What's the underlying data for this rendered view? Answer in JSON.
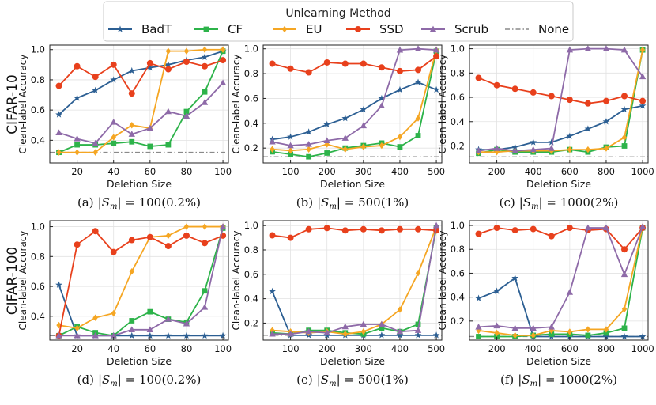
{
  "legend": {
    "title": "Unlearning Method",
    "items": [
      {
        "name": "BadT",
        "color": "#2c5f93",
        "marker": "star",
        "dash": ""
      },
      {
        "name": "CF",
        "color": "#2db34a",
        "marker": "square",
        "dash": ""
      },
      {
        "name": "EU",
        "color": "#f5a623",
        "marker": "diamond",
        "dash": ""
      },
      {
        "name": "SSD",
        "color": "#e8401c",
        "marker": "circle",
        "dash": ""
      },
      {
        "name": "Scrub",
        "color": "#8e6aa8",
        "marker": "triangle",
        "dash": ""
      },
      {
        "name": "None",
        "color": "#8a8a8a",
        "marker": "none",
        "dash": "6,3,1.5,3"
      }
    ]
  },
  "row_labels": [
    "CIFAR-10",
    "CIFAR-100"
  ],
  "ylabel": "Clean-label Accuracy",
  "xlabel": "Deletion Size",
  "captions": [
    {
      "letter": "(a)",
      "sm": "|S",
      "sub": "m",
      "expr": "| = 100(0.2%)"
    },
    {
      "letter": "(b)",
      "sm": "|S",
      "sub": "m",
      "expr": "| = 500(1%)"
    },
    {
      "letter": "(c)",
      "sm": "|S",
      "sub": "m",
      "expr": "| = 1000(2%)"
    },
    {
      "letter": "(d)",
      "sm": "|S",
      "sub": "m",
      "expr": "| = 100(0.2%)"
    },
    {
      "letter": "(e)",
      "sm": "|S",
      "sub": "m",
      "expr": "| = 500(1%)"
    },
    {
      "letter": "(f)",
      "sm": "|S",
      "sub": "m",
      "expr": "| = 1000(2%)"
    }
  ],
  "chart_data": [
    {
      "type": "line",
      "x": [
        10,
        20,
        30,
        40,
        50,
        60,
        70,
        80,
        90,
        100
      ],
      "xlim": [
        5,
        103
      ],
      "ylim": [
        0.25,
        1.03
      ],
      "xticks": [
        20,
        40,
        60,
        80,
        100
      ],
      "yticks": [
        0.2,
        0.4,
        0.6,
        0.8,
        1.0
      ],
      "grid": true,
      "baseline": 0.32,
      "series": [
        {
          "name": "BadT",
          "values": [
            0.57,
            0.68,
            0.73,
            0.8,
            0.86,
            0.88,
            0.9,
            0.93,
            0.95,
            0.99
          ]
        },
        {
          "name": "CF",
          "values": [
            0.32,
            0.37,
            0.37,
            0.38,
            0.39,
            0.36,
            0.37,
            0.59,
            0.72,
            0.99
          ]
        },
        {
          "name": "EU",
          "values": [
            0.32,
            0.32,
            0.32,
            0.42,
            0.5,
            0.48,
            0.99,
            0.99,
            1.0,
            1.0
          ]
        },
        {
          "name": "SSD",
          "values": [
            0.76,
            0.89,
            0.82,
            0.9,
            0.71,
            0.91,
            0.87,
            0.92,
            0.89,
            0.93
          ]
        },
        {
          "name": "Scrub",
          "values": [
            0.45,
            0.41,
            0.38,
            0.52,
            0.44,
            0.48,
            0.59,
            0.56,
            0.65,
            0.78
          ]
        }
      ]
    },
    {
      "type": "line",
      "x": [
        50,
        100,
        150,
        200,
        250,
        300,
        350,
        400,
        450,
        500
      ],
      "xlim": [
        25,
        515
      ],
      "ylim": [
        0.08,
        1.03
      ],
      "xticks": [
        100,
        200,
        300,
        400,
        500
      ],
      "yticks": [
        0.2,
        0.4,
        0.6,
        0.8,
        1.0
      ],
      "grid": true,
      "baseline": 0.13,
      "series": [
        {
          "name": "BadT",
          "values": [
            0.27,
            0.29,
            0.33,
            0.39,
            0.44,
            0.51,
            0.6,
            0.67,
            0.73,
            0.67
          ]
        },
        {
          "name": "CF",
          "values": [
            0.17,
            0.15,
            0.13,
            0.16,
            0.2,
            0.22,
            0.24,
            0.21,
            0.3,
            0.98
          ]
        },
        {
          "name": "EU",
          "values": [
            0.19,
            0.18,
            0.19,
            0.23,
            0.19,
            0.21,
            0.22,
            0.29,
            0.44,
            0.99
          ]
        },
        {
          "name": "SSD",
          "values": [
            0.88,
            0.84,
            0.81,
            0.89,
            0.88,
            0.88,
            0.85,
            0.82,
            0.83,
            0.94
          ]
        },
        {
          "name": "Scrub",
          "values": [
            0.25,
            0.22,
            0.23,
            0.26,
            0.28,
            0.38,
            0.54,
            0.99,
            1.0,
            0.99
          ]
        }
      ]
    },
    {
      "type": "line",
      "x": [
        100,
        200,
        300,
        400,
        500,
        600,
        700,
        800,
        900,
        1000
      ],
      "xlim": [
        50,
        1030
      ],
      "ylim": [
        0.06,
        1.03
      ],
      "xticks": [
        200,
        400,
        600,
        800,
        1000
      ],
      "yticks": [
        0.2,
        0.4,
        0.6,
        0.8,
        1.0
      ],
      "grid": true,
      "baseline": 0.11,
      "series": [
        {
          "name": "BadT",
          "values": [
            0.17,
            0.17,
            0.19,
            0.23,
            0.23,
            0.28,
            0.34,
            0.4,
            0.5,
            0.53
          ]
        },
        {
          "name": "CF",
          "values": [
            0.14,
            0.17,
            0.15,
            0.15,
            0.15,
            0.17,
            0.15,
            0.19,
            0.2,
            0.99
          ]
        },
        {
          "name": "EU",
          "values": [
            0.15,
            0.15,
            0.16,
            0.16,
            0.16,
            0.17,
            0.17,
            0.18,
            0.27,
            0.99
          ]
        },
        {
          "name": "SSD",
          "values": [
            0.76,
            0.7,
            0.67,
            0.64,
            0.61,
            0.58,
            0.55,
            0.57,
            0.61,
            0.57
          ]
        },
        {
          "name": "Scrub",
          "values": [
            0.16,
            0.18,
            0.16,
            0.17,
            0.18,
            0.99,
            1.0,
            1.0,
            0.99,
            0.77
          ]
        }
      ]
    },
    {
      "type": "line",
      "x": [
        10,
        20,
        30,
        40,
        50,
        60,
        70,
        80,
        90,
        100
      ],
      "xlim": [
        5,
        103
      ],
      "ylim": [
        0.24,
        1.04
      ],
      "xticks": [
        20,
        40,
        60,
        80,
        100
      ],
      "yticks": [
        0.2,
        0.4,
        0.6,
        0.8,
        1.0
      ],
      "grid": true,
      "baseline": 0.27,
      "series": [
        {
          "name": "BadT",
          "values": [
            0.61,
            0.27,
            0.27,
            0.27,
            0.27,
            0.27,
            0.27,
            0.27,
            0.27,
            0.27
          ]
        },
        {
          "name": "CF",
          "values": [
            0.27,
            0.33,
            0.29,
            0.27,
            0.37,
            0.43,
            0.38,
            0.36,
            0.57,
            0.99
          ]
        },
        {
          "name": "EU",
          "values": [
            0.34,
            0.32,
            0.39,
            0.42,
            0.7,
            0.93,
            0.94,
            1.0,
            1.0,
            1.0
          ]
        },
        {
          "name": "SSD",
          "values": [
            0.27,
            0.88,
            0.97,
            0.83,
            0.91,
            0.93,
            0.87,
            0.94,
            0.89,
            0.94
          ]
        },
        {
          "name": "Scrub",
          "values": [
            0.27,
            0.27,
            0.27,
            0.27,
            0.31,
            0.31,
            0.38,
            0.35,
            0.46,
            1.0
          ]
        }
      ]
    },
    {
      "type": "line",
      "x": [
        50,
        100,
        150,
        200,
        250,
        300,
        350,
        400,
        450,
        500
      ],
      "xlim": [
        25,
        515
      ],
      "ylim": [
        0.06,
        1.04
      ],
      "xticks": [
        100,
        200,
        300,
        400,
        500
      ],
      "yticks": [
        0.2,
        0.4,
        0.6,
        0.8,
        1.0
      ],
      "grid": true,
      "baseline": 0.1,
      "series": [
        {
          "name": "BadT",
          "values": [
            0.46,
            0.1,
            0.1,
            0.1,
            0.1,
            0.1,
            0.1,
            0.1,
            0.1,
            0.1
          ]
        },
        {
          "name": "CF",
          "values": [
            0.12,
            0.11,
            0.14,
            0.14,
            0.12,
            0.11,
            0.16,
            0.13,
            0.19,
            0.98
          ]
        },
        {
          "name": "EU",
          "values": [
            0.14,
            0.13,
            0.12,
            0.13,
            0.11,
            0.13,
            0.19,
            0.31,
            0.61,
            0.99
          ]
        },
        {
          "name": "SSD",
          "values": [
            0.92,
            0.9,
            0.97,
            0.98,
            0.96,
            0.97,
            0.96,
            0.97,
            0.97,
            0.96
          ]
        },
        {
          "name": "Scrub",
          "values": [
            0.11,
            0.11,
            0.13,
            0.12,
            0.17,
            0.19,
            0.19,
            0.13,
            0.14,
            1.0
          ]
        }
      ]
    },
    {
      "type": "line",
      "x": [
        100,
        200,
        300,
        400,
        500,
        600,
        700,
        800,
        900,
        1000
      ],
      "xlim": [
        50,
        1030
      ],
      "ylim": [
        0.04,
        1.04
      ],
      "xticks": [
        200,
        400,
        600,
        800,
        1000
      ],
      "yticks": [
        0.2,
        0.4,
        0.6,
        0.8,
        1.0
      ],
      "grid": true,
      "baseline": 0.07,
      "series": [
        {
          "name": "BadT",
          "values": [
            0.39,
            0.45,
            0.56,
            0.07,
            0.07,
            0.07,
            0.07,
            0.07,
            0.07,
            0.07
          ]
        },
        {
          "name": "CF",
          "values": [
            0.07,
            0.07,
            0.07,
            0.08,
            0.09,
            0.09,
            0.08,
            0.1,
            0.14,
            0.98
          ]
        },
        {
          "name": "EU",
          "values": [
            0.12,
            0.1,
            0.08,
            0.08,
            0.12,
            0.11,
            0.13,
            0.13,
            0.3,
            0.99
          ]
        },
        {
          "name": "SSD",
          "values": [
            0.93,
            0.98,
            0.96,
            0.97,
            0.91,
            0.98,
            0.96,
            0.97,
            0.8,
            0.98
          ]
        },
        {
          "name": "Scrub",
          "values": [
            0.15,
            0.16,
            0.14,
            0.14,
            0.15,
            0.44,
            0.98,
            0.98,
            0.59,
            0.99
          ]
        }
      ]
    }
  ]
}
